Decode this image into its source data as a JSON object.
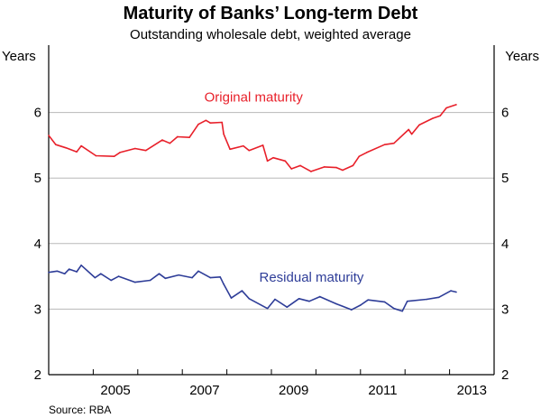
{
  "chart_data": {
    "type": "line",
    "title": "Maturity of Banks’ Long-term Debt",
    "subtitle": "Outstanding wholesale debt, weighted average",
    "ylabel_left": "Years",
    "ylabel_right": "Years",
    "xlabel": "",
    "source": "Source: RBA",
    "xlim": [
      2004,
      2014
    ],
    "ylim": [
      2,
      7
    ],
    "yticks": [
      2,
      3,
      4,
      5,
      6
    ],
    "xtick_marks": [
      2005,
      2006,
      2007,
      2008,
      2009,
      2010,
      2011,
      2012,
      2013
    ],
    "xtick_labels": [
      "2005",
      "2007",
      "2009",
      "2011",
      "2013"
    ],
    "grid": true,
    "series": [
      {
        "name": "Original maturity",
        "color": "#e8202a",
        "x": [
          2004.0,
          2004.16,
          2004.39,
          2004.63,
          2004.73,
          2005.06,
          2005.47,
          2005.6,
          2005.94,
          2006.18,
          2006.55,
          2006.72,
          2006.89,
          2007.16,
          2007.36,
          2007.53,
          2007.63,
          2007.89,
          2007.93,
          2008.07,
          2008.37,
          2008.5,
          2008.81,
          2008.91,
          2009.04,
          2009.31,
          2009.45,
          2009.65,
          2009.89,
          2010.19,
          2010.46,
          2010.6,
          2010.83,
          2010.97,
          2011.14,
          2011.54,
          2011.75,
          2012.08,
          2012.15,
          2012.32,
          2012.62,
          2012.79,
          2012.93,
          2013.15
        ],
        "values": [
          5.65,
          5.51,
          5.46,
          5.4,
          5.49,
          5.34,
          5.33,
          5.39,
          5.45,
          5.42,
          5.58,
          5.53,
          5.63,
          5.62,
          5.82,
          5.88,
          5.84,
          5.85,
          5.67,
          5.44,
          5.49,
          5.42,
          5.5,
          5.26,
          5.31,
          5.26,
          5.14,
          5.19,
          5.1,
          5.17,
          5.16,
          5.12,
          5.19,
          5.33,
          5.39,
          5.51,
          5.53,
          5.74,
          5.67,
          5.81,
          5.91,
          5.95,
          6.07,
          6.12
        ]
      },
      {
        "name": "Residual maturity",
        "color": "#2e3d98",
        "x": [
          2004.0,
          2004.19,
          2004.36,
          2004.46,
          2004.63,
          2004.73,
          2005.04,
          2005.17,
          2005.4,
          2005.57,
          2005.94,
          2006.28,
          2006.48,
          2006.62,
          2006.92,
          2007.22,
          2007.36,
          2007.63,
          2007.85,
          2007.93,
          2008.1,
          2008.34,
          2008.5,
          2008.91,
          2009.08,
          2009.35,
          2009.62,
          2009.85,
          2010.09,
          2010.46,
          2010.8,
          2011.0,
          2011.17,
          2011.54,
          2011.75,
          2011.94,
          2012.05,
          2012.49,
          2012.76,
          2013.03,
          2013.15
        ],
        "values": [
          3.56,
          3.58,
          3.54,
          3.61,
          3.57,
          3.67,
          3.48,
          3.54,
          3.44,
          3.5,
          3.41,
          3.44,
          3.54,
          3.47,
          3.52,
          3.48,
          3.58,
          3.48,
          3.49,
          3.38,
          3.17,
          3.28,
          3.16,
          3.01,
          3.15,
          3.03,
          3.16,
          3.12,
          3.19,
          3.08,
          2.99,
          3.06,
          3.14,
          3.11,
          3.01,
          2.97,
          3.12,
          3.15,
          3.18,
          3.28,
          3.26
        ]
      }
    ],
    "annotations": [
      {
        "text": "Original maturity",
        "series": 0,
        "x": 2008.6,
        "y": 6.17
      },
      {
        "text": "Residual maturity",
        "series": 1,
        "x": 2009.9,
        "y": 3.42
      }
    ]
  }
}
